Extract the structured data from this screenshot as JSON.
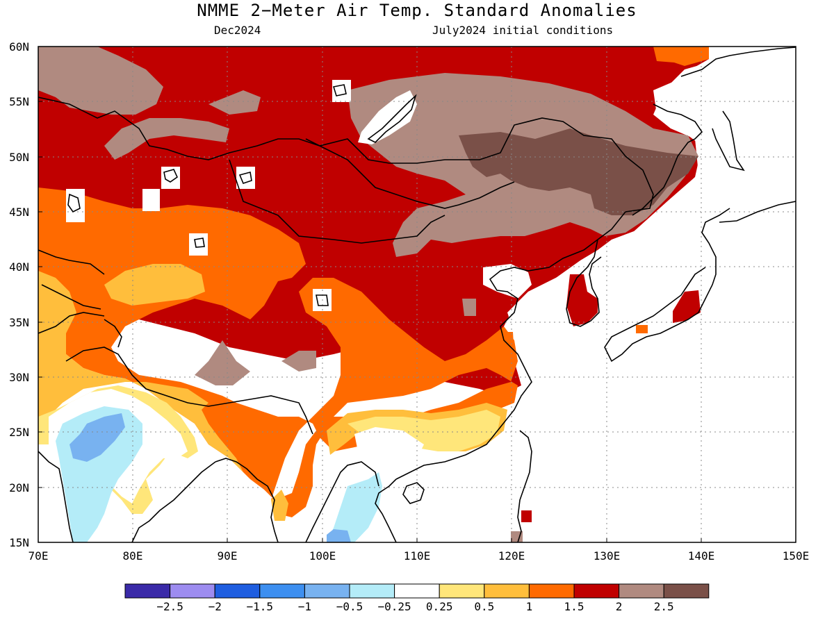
{
  "title": "NMME 2−Meter Air Temp. Standard Anomalies",
  "subtitle_left": "Dec2024",
  "subtitle_right": "July2024 initial conditions",
  "lon_labels": [
    "70E",
    "80E",
    "90E",
    "100E",
    "110E",
    "120E",
    "130E",
    "140E",
    "150E"
  ],
  "lat_labels": [
    "60N",
    "55N",
    "50N",
    "45N",
    "40N",
    "35N",
    "30N",
    "25N",
    "20N",
    "15N"
  ],
  "colorbar": {
    "colors": [
      "#3a2aa8",
      "#9d8cf0",
      "#1f5ee0",
      "#3d8ff0",
      "#78b2f0",
      "#b4ecf8",
      "#ffffff",
      "#ffe67a",
      "#ffbe3c",
      "#ff6a00",
      "#c00000",
      "#b08a80",
      "#7a5048"
    ],
    "labels": [
      "−2.5",
      "−2",
      "−1.5",
      "−1",
      "−0.5",
      "−0.25",
      "0.25",
      "0.5",
      "1",
      "1.5",
      "2",
      "2.5"
    ]
  },
  "palette": {
    "land": "#c00000",
    "brown_light": "#b08a80",
    "brown_dark": "#7a5048",
    "orange": "#ff6a00",
    "light_orange": "#ffbe3c",
    "yellow": "#ffe67a",
    "white": "#ffffff",
    "cyan": "#b4ecf8",
    "light_blue": "#78b2f0",
    "border": "#000000",
    "grid": "#888888"
  }
}
